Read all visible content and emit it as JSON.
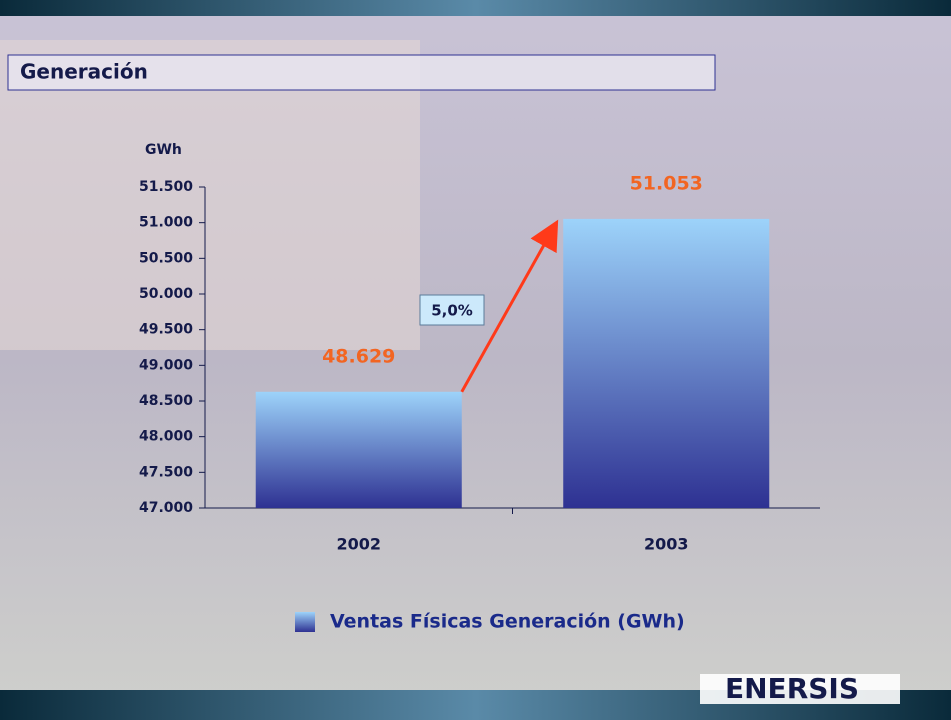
{
  "chart_data": {
    "type": "bar",
    "title": "Generación",
    "y_label": "GWh",
    "categories": [
      "2002",
      "2003"
    ],
    "series": [
      {
        "name": "Ventas Físicas Generación (GWh)",
        "color": "#2e3192",
        "values": [
          48629,
          51053
        ],
        "value_labels": [
          "48.629",
          "51.053"
        ]
      }
    ],
    "ylim": [
      47000,
      51500
    ],
    "yticks": [
      {
        "value": 47000,
        "label": "47.000"
      },
      {
        "value": 47500,
        "label": "47.500"
      },
      {
        "value": 48000,
        "label": "48.000"
      },
      {
        "value": 48500,
        "label": "48.500"
      },
      {
        "value": 49000,
        "label": "49.000"
      },
      {
        "value": 49500,
        "label": "49.500"
      },
      {
        "value": 50000,
        "label": "50.000"
      },
      {
        "value": 50500,
        "label": "50.500"
      },
      {
        "value": 51000,
        "label": "51.000"
      },
      {
        "value": 51500,
        "label": "51.500"
      }
    ],
    "annotation": "5,0%",
    "legend": "bottom"
  },
  "logo": "ENERSIS"
}
